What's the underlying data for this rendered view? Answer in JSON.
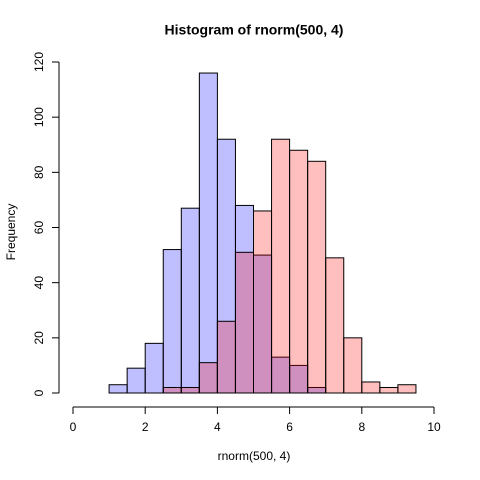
{
  "chart_data": {
    "type": "histogram",
    "title": "Histogram of rnorm(500, 4)",
    "x_label": "rnorm(500, 4)",
    "y_label": "Frequency",
    "xlim": [
      0,
      10
    ],
    "xticks": [
      0,
      2,
      4,
      6,
      8,
      10
    ],
    "ylim": [
      0,
      120
    ],
    "yticks": [
      0,
      20,
      40,
      60,
      80,
      100,
      120
    ],
    "series": [
      {
        "color": "rgba(0,0,255,0.25)",
        "bins": [
          1,
          1.5,
          2,
          2.5,
          3,
          3.5,
          4,
          4.5,
          5,
          5.5,
          6,
          6.5,
          7
        ],
        "values": [
          3,
          9,
          18,
          52,
          67,
          116,
          92,
          68,
          50,
          13,
          10,
          2
        ]
      },
      {
        "color": "rgba(255,0,0,0.25)",
        "bins": [
          2.5,
          3,
          3.5,
          4,
          4.5,
          5,
          5.5,
          6,
          6.5,
          7,
          7.5,
          8,
          8.5,
          9,
          9.5
        ],
        "values": [
          2,
          2,
          11,
          26,
          51,
          66,
          92,
          88,
          84,
          49,
          20,
          4,
          2,
          3
        ]
      }
    ]
  }
}
